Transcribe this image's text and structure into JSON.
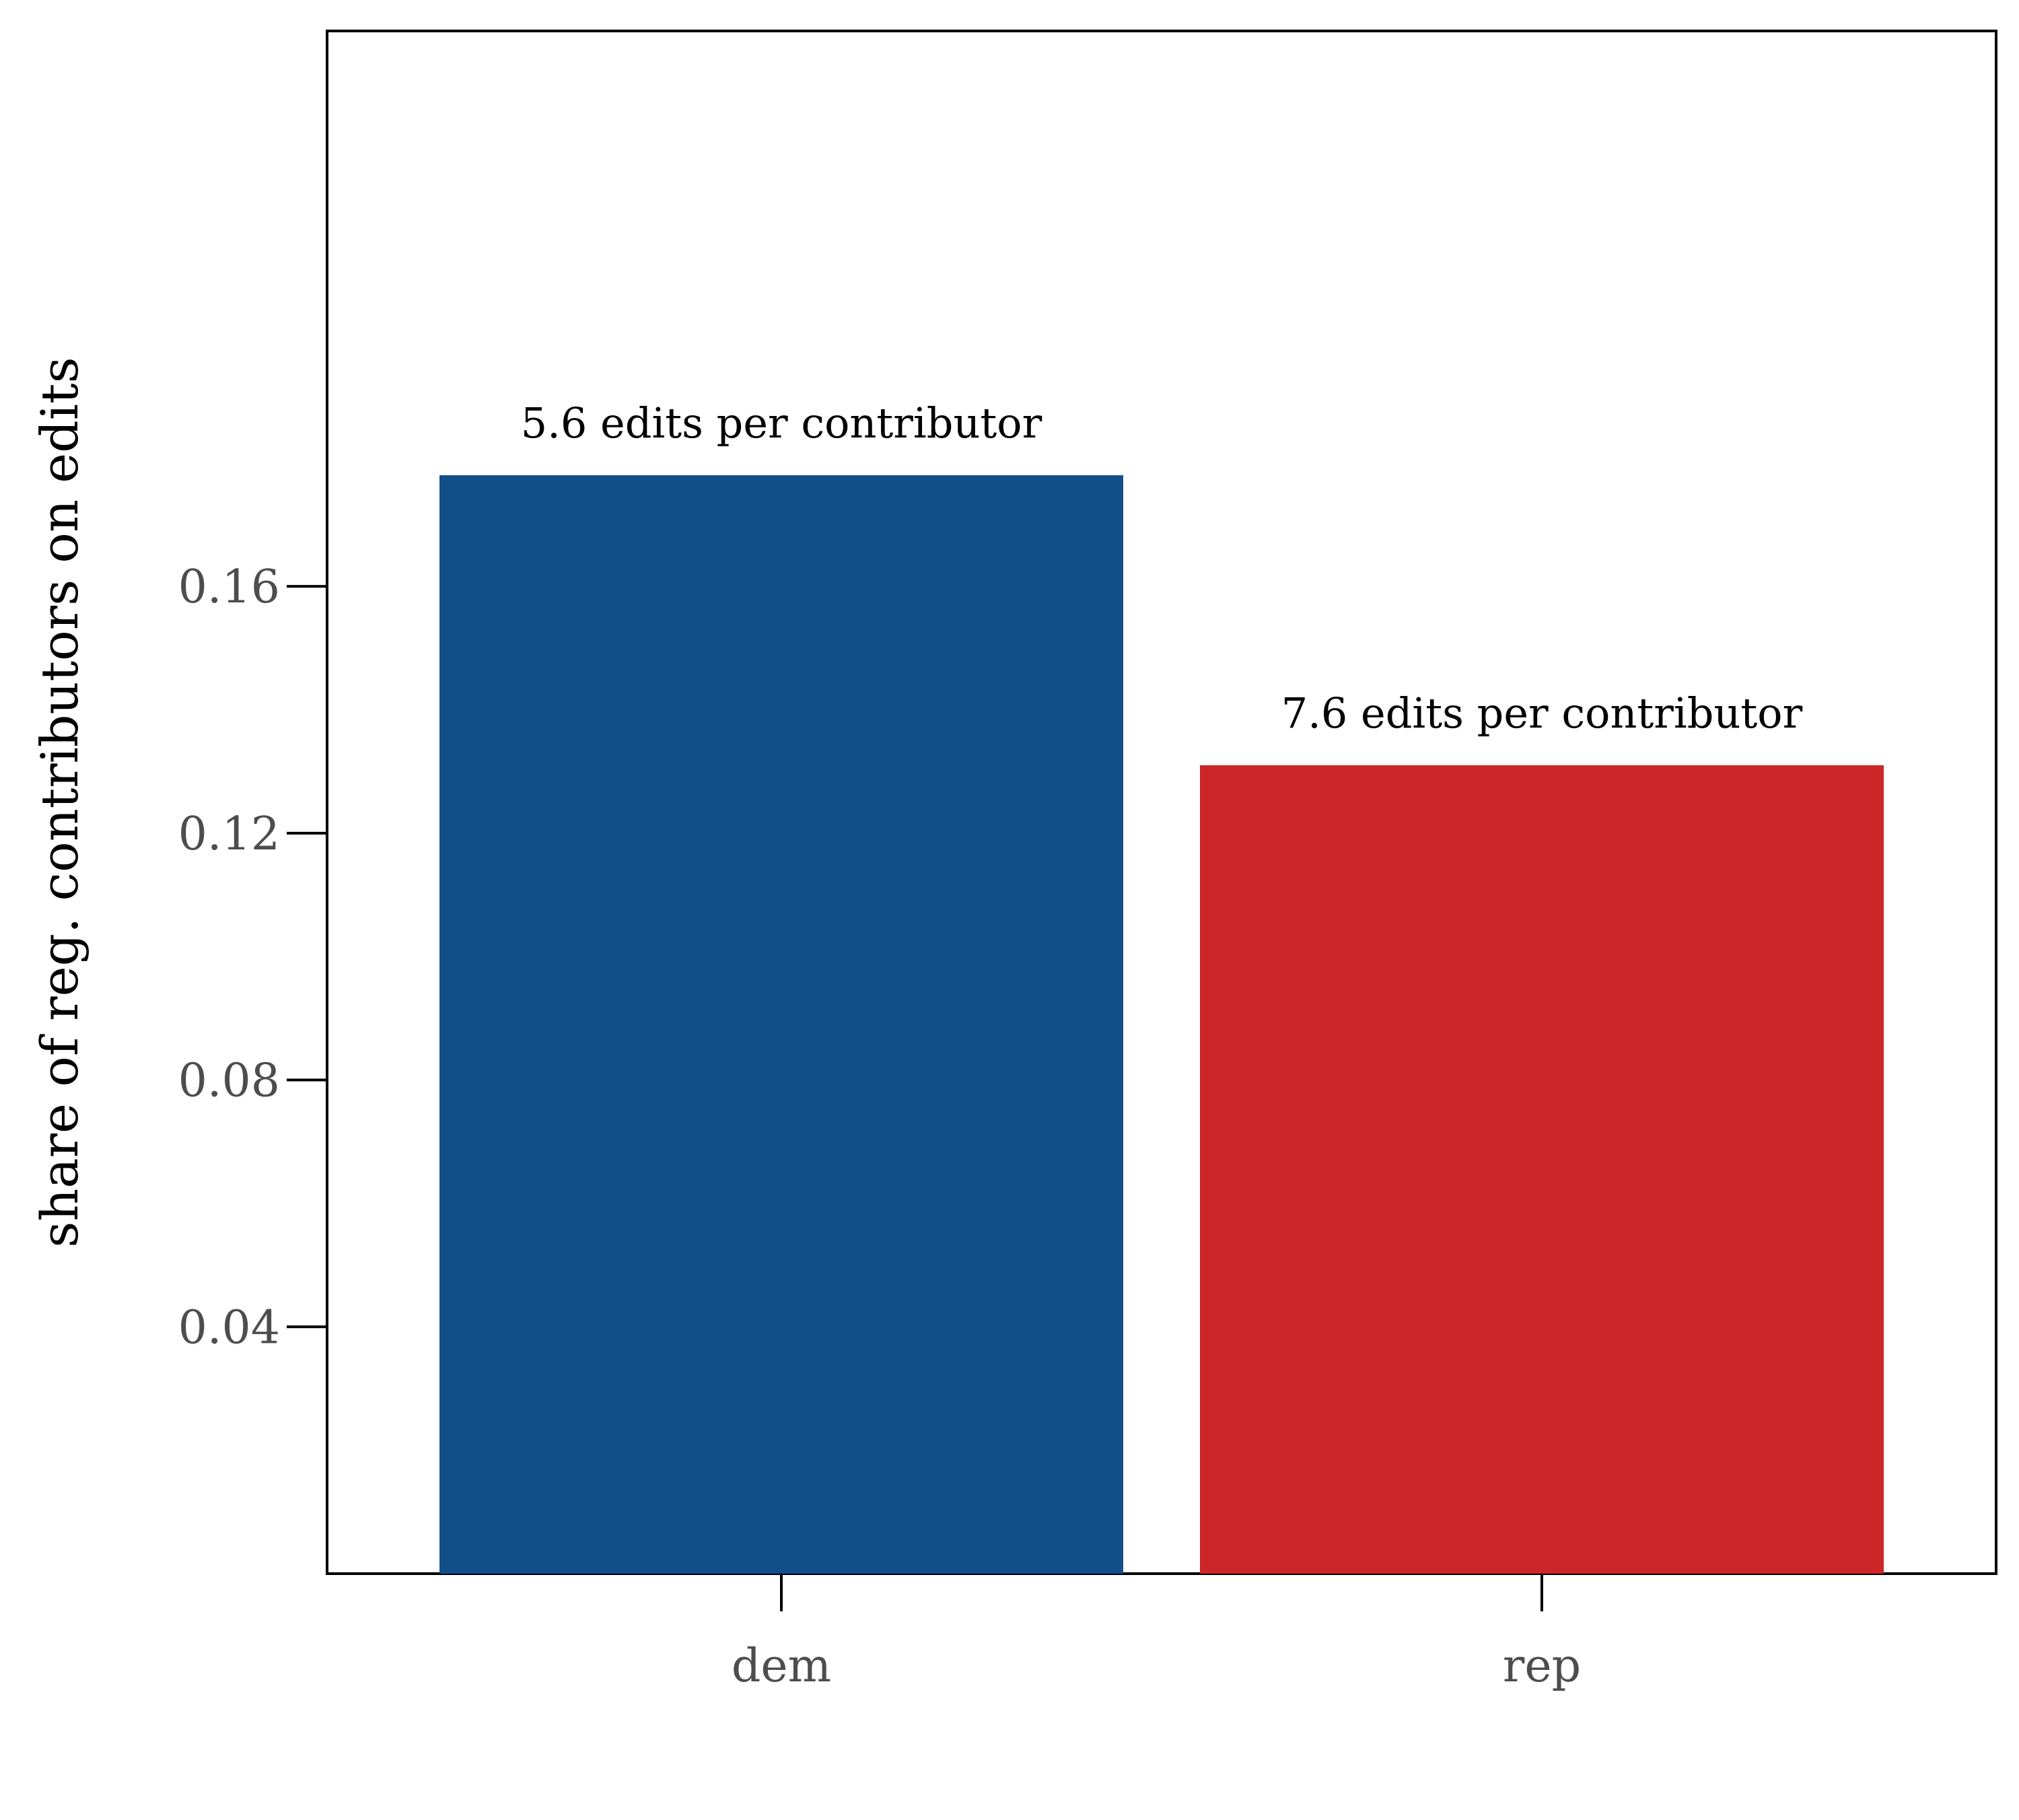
{
  "chart_data": {
    "type": "bar",
    "title": "",
    "xlabel": "",
    "ylabel": "share of reg. contributors on edits",
    "categories": [
      "dem",
      "rep"
    ],
    "values": [
      0.178,
      0.131
    ],
    "annotations": [
      "5.6 edits per contributor",
      "7.6 edits per contributor"
    ],
    "colors": [
      "#124f89",
      "#cc2628"
    ],
    "ylim": [
      0,
      0.2
    ],
    "yticks": [
      0.04,
      0.08,
      0.12,
      0.16
    ],
    "ytick_labels": [
      "0.04",
      "0.08",
      "0.12",
      "0.16"
    ],
    "grid": false,
    "legend": "none"
  }
}
